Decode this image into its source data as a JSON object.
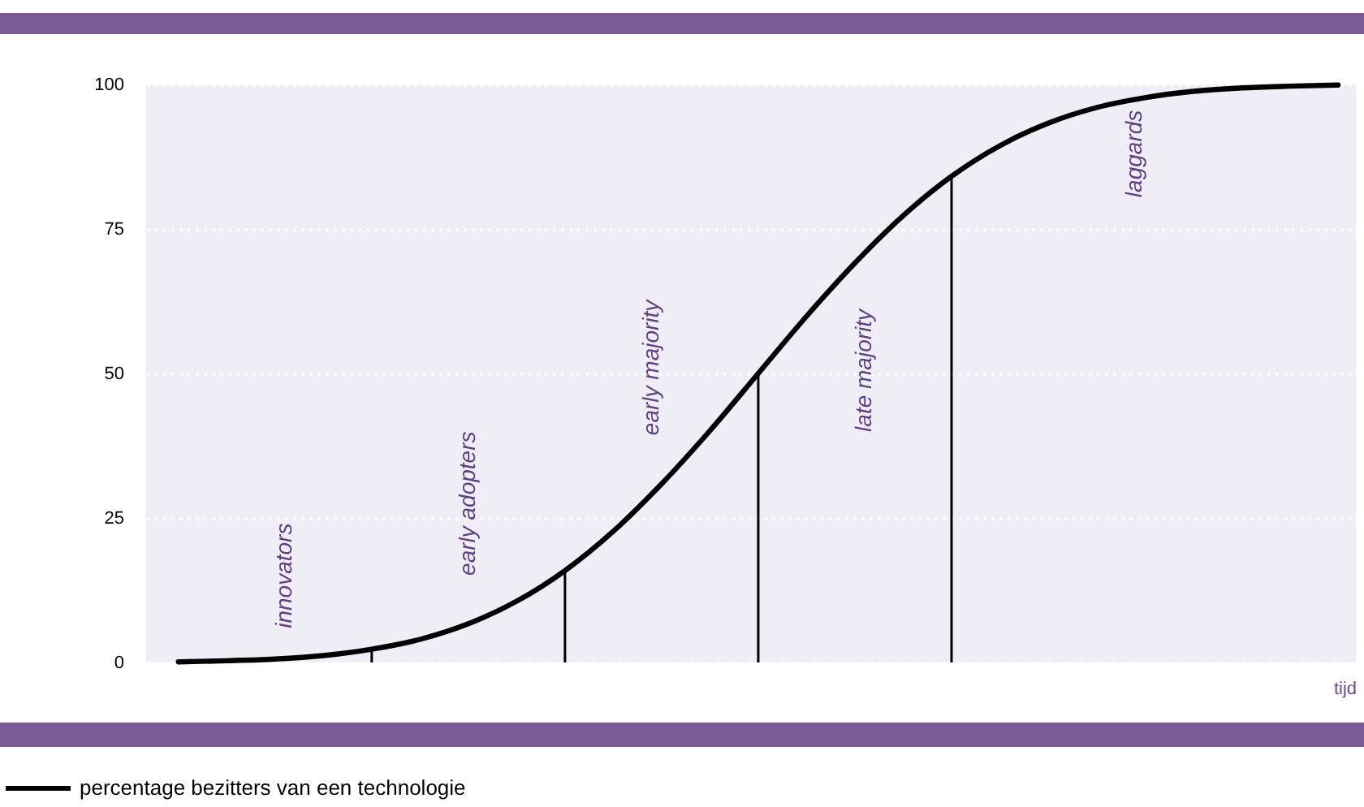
{
  "chart_data": {
    "type": "line",
    "xlabel": "tijd",
    "categories": [
      null,
      null,
      null,
      null,
      null,
      null,
      null,
      null,
      null,
      null,
      null,
      null,
      null,
      null,
      null,
      null,
      null,
      null,
      null,
      null,
      null,
      null,
      null,
      null,
      null
    ],
    "ylim": [
      0,
      100
    ],
    "yticks": [
      0,
      25,
      50,
      75,
      100
    ],
    "grid": "y",
    "legend": "bottom left",
    "annotations": [
      "innovators",
      "early adopters",
      "early majority",
      "late majority",
      "laggards"
    ],
    "series": [
      {
        "name": "percentage bezitters van een technologie",
        "color": "#000000",
        "values": [
          0.1,
          0.3,
          0.6,
          1.2,
          2.3,
          4,
          6.7,
          10.6,
          15.9,
          22.7,
          30.9,
          40.1,
          50,
          59.9,
          69.1,
          77.3,
          84.1,
          89.4,
          93.3,
          96,
          97.7,
          98.8,
          99.4,
          99.7,
          99.9
        ]
      },
      {
        "type": "bar",
        "color": "#000000",
        "values": [
          null,
          null,
          null,
          null,
          2,
          null,
          null,
          null,
          16,
          null,
          null,
          null,
          50,
          null,
          null,
          null,
          84,
          null,
          null,
          null,
          null,
          null,
          null,
          null,
          null
        ]
      }
    ]
  }
}
